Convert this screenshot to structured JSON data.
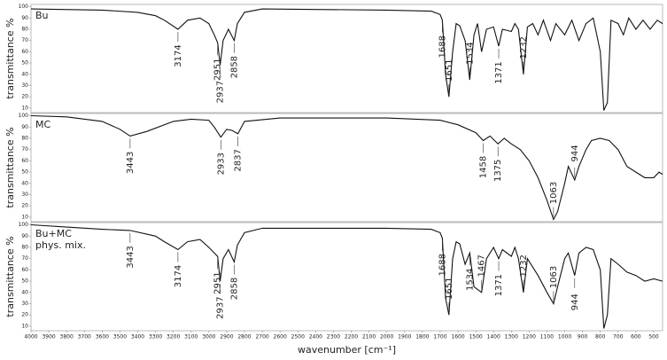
{
  "chart_data": [
    {
      "type": "line",
      "ylabel": "transmittance %",
      "ylim": [
        6,
        102
      ],
      "yticks": [
        10,
        20,
        30,
        40,
        50,
        60,
        70,
        80,
        90,
        100
      ],
      "xlim": [
        4000,
        450
      ],
      "x": [
        4000,
        3600,
        3400,
        3300,
        3250,
        3174,
        3120,
        3050,
        3000,
        2970,
        2951,
        2937,
        2920,
        2890,
        2858,
        2840,
        2800,
        2700,
        2000,
        1750,
        1700,
        1688,
        1670,
        1651,
        1630,
        1610,
        1590,
        1560,
        1534,
        1510,
        1490,
        1467,
        1440,
        1400,
        1371,
        1350,
        1300,
        1280,
        1260,
        1232,
        1210,
        1180,
        1150,
        1120,
        1080,
        1050,
        1000,
        960,
        920,
        880,
        840,
        800,
        780,
        760,
        740,
        700,
        670,
        640,
        600,
        560,
        520,
        480,
        450
      ],
      "series": [
        {
          "name": "Bu",
          "color": "#111111",
          "values": [
            98,
            97,
            95,
            92,
            88,
            80,
            88,
            90,
            85,
            75,
            68,
            48,
            70,
            80,
            70,
            85,
            95,
            98,
            97,
            96,
            93,
            88,
            40,
            20,
            60,
            85,
            83,
            70,
            35,
            75,
            85,
            60,
            80,
            82,
            65,
            80,
            78,
            85,
            80,
            40,
            82,
            85,
            75,
            88,
            70,
            85,
            75,
            88,
            70,
            85,
            90,
            60,
            8,
            15,
            88,
            85,
            75,
            90,
            80,
            88,
            80,
            88,
            85
          ]
        }
      ],
      "peaks": [
        3174,
        2951,
        2937,
        2858,
        1688,
        1651,
        1534,
        1371,
        1232
      ]
    },
    {
      "type": "line",
      "ylabel": "transmittance %",
      "ylim": [
        6,
        102
      ],
      "yticks": [
        10,
        20,
        30,
        40,
        50,
        60,
        70,
        80,
        90,
        100
      ],
      "xlim": [
        4000,
        450
      ],
      "x": [
        4000,
        3800,
        3600,
        3500,
        3443,
        3350,
        3200,
        3100,
        3000,
        2970,
        2933,
        2900,
        2870,
        2837,
        2800,
        2600,
        2000,
        1700,
        1600,
        1500,
        1458,
        1420,
        1375,
        1340,
        1300,
        1250,
        1200,
        1150,
        1100,
        1063,
        1040,
        1000,
        980,
        944,
        920,
        880,
        850,
        800,
        750,
        700,
        650,
        600,
        550,
        500,
        470,
        450
      ],
      "series": [
        {
          "name": "MC",
          "color": "#111111",
          "values": [
            100,
            99,
            95,
            88,
            82,
            86,
            95,
            97,
            96,
            90,
            81,
            88,
            87,
            84,
            95,
            98,
            98,
            96,
            92,
            85,
            78,
            82,
            75,
            80,
            75,
            70,
            60,
            45,
            25,
            8,
            15,
            40,
            55,
            43,
            55,
            70,
            78,
            80,
            78,
            70,
            55,
            50,
            45,
            45,
            50,
            48
          ]
        }
      ],
      "peaks": [
        3443,
        2933,
        2837,
        1458,
        1375,
        1063,
        944
      ]
    },
    {
      "type": "line",
      "ylabel": "transmittance %",
      "xlabel": "wavenumber [cm⁻¹]",
      "ylim": [
        6,
        102
      ],
      "yticks": [
        10,
        20,
        30,
        40,
        50,
        60,
        70,
        80,
        90,
        100
      ],
      "xlim": [
        4000,
        450
      ],
      "xticks": [
        4000,
        3900,
        3800,
        3700,
        3600,
        3500,
        3400,
        3300,
        3200,
        3100,
        3000,
        2900,
        2800,
        2700,
        2600,
        2500,
        2400,
        2300,
        2200,
        2100,
        2000,
        1900,
        1800,
        1700,
        1600,
        1500,
        1400,
        1300,
        1200,
        1100,
        1000,
        900,
        800,
        700,
        600,
        500
      ],
      "x": [
        4000,
        3800,
        3600,
        3443,
        3300,
        3250,
        3174,
        3120,
        3050,
        3000,
        2951,
        2937,
        2920,
        2890,
        2858,
        2840,
        2800,
        2700,
        2000,
        1750,
        1700,
        1688,
        1670,
        1651,
        1630,
        1610,
        1590,
        1560,
        1534,
        1510,
        1467,
        1440,
        1400,
        1371,
        1350,
        1300,
        1280,
        1260,
        1232,
        1210,
        1150,
        1100,
        1063,
        1040,
        1000,
        980,
        944,
        920,
        880,
        840,
        800,
        780,
        760,
        740,
        700,
        650,
        600,
        550,
        500,
        450
      ],
      "series": [
        {
          "name": "Bu+MC phys. mix.",
          "color": "#111111",
          "values": [
            100,
            98,
            96,
            95,
            90,
            85,
            78,
            85,
            87,
            80,
            72,
            50,
            70,
            78,
            67,
            82,
            93,
            97,
            97,
            96,
            93,
            88,
            35,
            20,
            70,
            85,
            83,
            65,
            75,
            45,
            40,
            70,
            80,
            70,
            78,
            72,
            80,
            70,
            40,
            70,
            55,
            40,
            30,
            45,
            70,
            75,
            55,
            75,
            80,
            78,
            60,
            8,
            20,
            70,
            65,
            58,
            55,
            50,
            52,
            50
          ]
        }
      ],
      "peaks": [
        3443,
        3174,
        2951,
        2937,
        2858,
        1688,
        1534,
        1651,
        1467,
        1371,
        1232,
        1063,
        944
      ]
    }
  ]
}
